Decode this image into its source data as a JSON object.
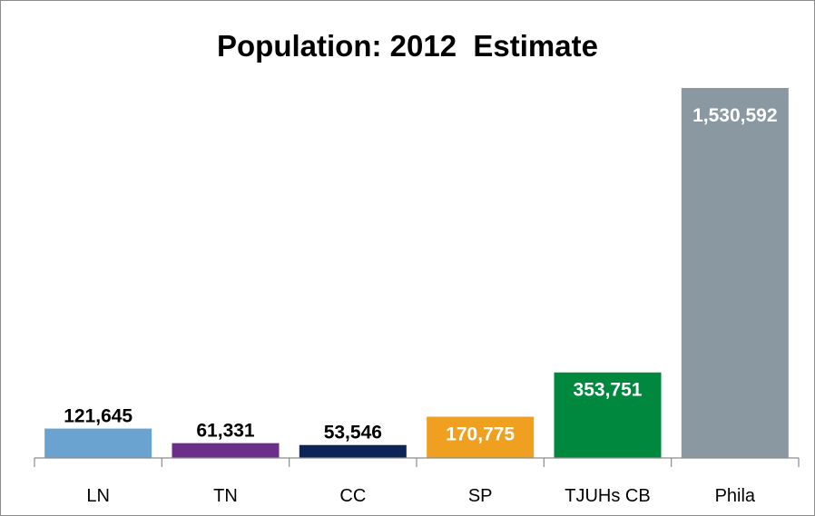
{
  "chart_data": {
    "type": "bar",
    "title": "Population: 2012  Estimate",
    "xlabel": "",
    "ylabel": "",
    "categories": [
      "LN",
      "TN",
      "CC",
      "SP",
      "TJUHs CB",
      "Phila"
    ],
    "values": [
      121645,
      61331,
      53546,
      170775,
      353751,
      1530592
    ],
    "data_labels": [
      "121,645",
      "61,331",
      "53,546",
      "170,775",
      "353,751",
      "1,530,592"
    ],
    "bar_colors": [
      "#6aa3cf",
      "#6b2f8a",
      "#0d2456",
      "#f0a020",
      "#00883f",
      "#8a98a2"
    ],
    "label_colors": [
      "#000000",
      "#000000",
      "#000000",
      "#ffffff",
      "#ffffff",
      "#ffffff"
    ],
    "label_inside": [
      false,
      false,
      false,
      true,
      true,
      true
    ],
    "ylim": [
      0,
      1530592
    ],
    "grid": false,
    "legend": "none"
  }
}
